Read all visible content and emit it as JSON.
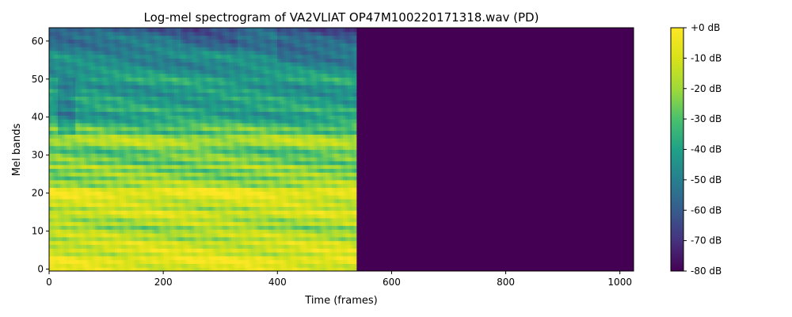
{
  "chart_data": {
    "type": "heatmap",
    "title": "Log-mel spectrogram of VA2VLIAT OP47M100220171318.wav (PD)",
    "xlabel": "Time (frames)",
    "ylabel": "Mel bands",
    "xlim": [
      0,
      1024
    ],
    "ylim": [
      -0.5,
      63.5
    ],
    "x_ticks": [
      0,
      200,
      400,
      600,
      800,
      1000
    ],
    "y_ticks": [
      0,
      10,
      20,
      30,
      40,
      50,
      60
    ],
    "n_frames": 1024,
    "n_mels": 64,
    "signal_end_frame": 538,
    "padding_value_db": -80,
    "colormap": "viridis",
    "colorbar": {
      "range_db": [
        -80,
        0
      ],
      "ticks": [
        0,
        -10,
        -20,
        -30,
        -40,
        -50,
        -60,
        -70,
        -80
      ],
      "tick_labels": [
        "+0 dB",
        "-10 dB",
        "-20 dB",
        "-30 dB",
        "-40 dB",
        "-50 dB",
        "-60 dB",
        "-70 dB",
        "-80 dB"
      ]
    },
    "mean_db_by_mel_band": [
      -8,
      -10,
      -4,
      -5,
      -15,
      -7,
      -14,
      -9,
      -20,
      -12,
      -17,
      -24,
      -13,
      -20,
      -12,
      -8,
      -19,
      -10,
      -14,
      -7,
      -4,
      -6,
      -21,
      -16,
      -27,
      -19,
      -28,
      -17,
      -30,
      -22,
      -26,
      -31,
      -25,
      -17,
      -16,
      -20,
      -33,
      -25,
      -32,
      -37,
      -40,
      -43,
      -35,
      -40,
      -42,
      -38,
      -44,
      -41,
      -45,
      -40,
      -37,
      -42,
      -44,
      -46,
      -48,
      -47,
      -45,
      -48,
      -50,
      -52,
      -54,
      -53,
      -57,
      -60
    ]
  }
}
